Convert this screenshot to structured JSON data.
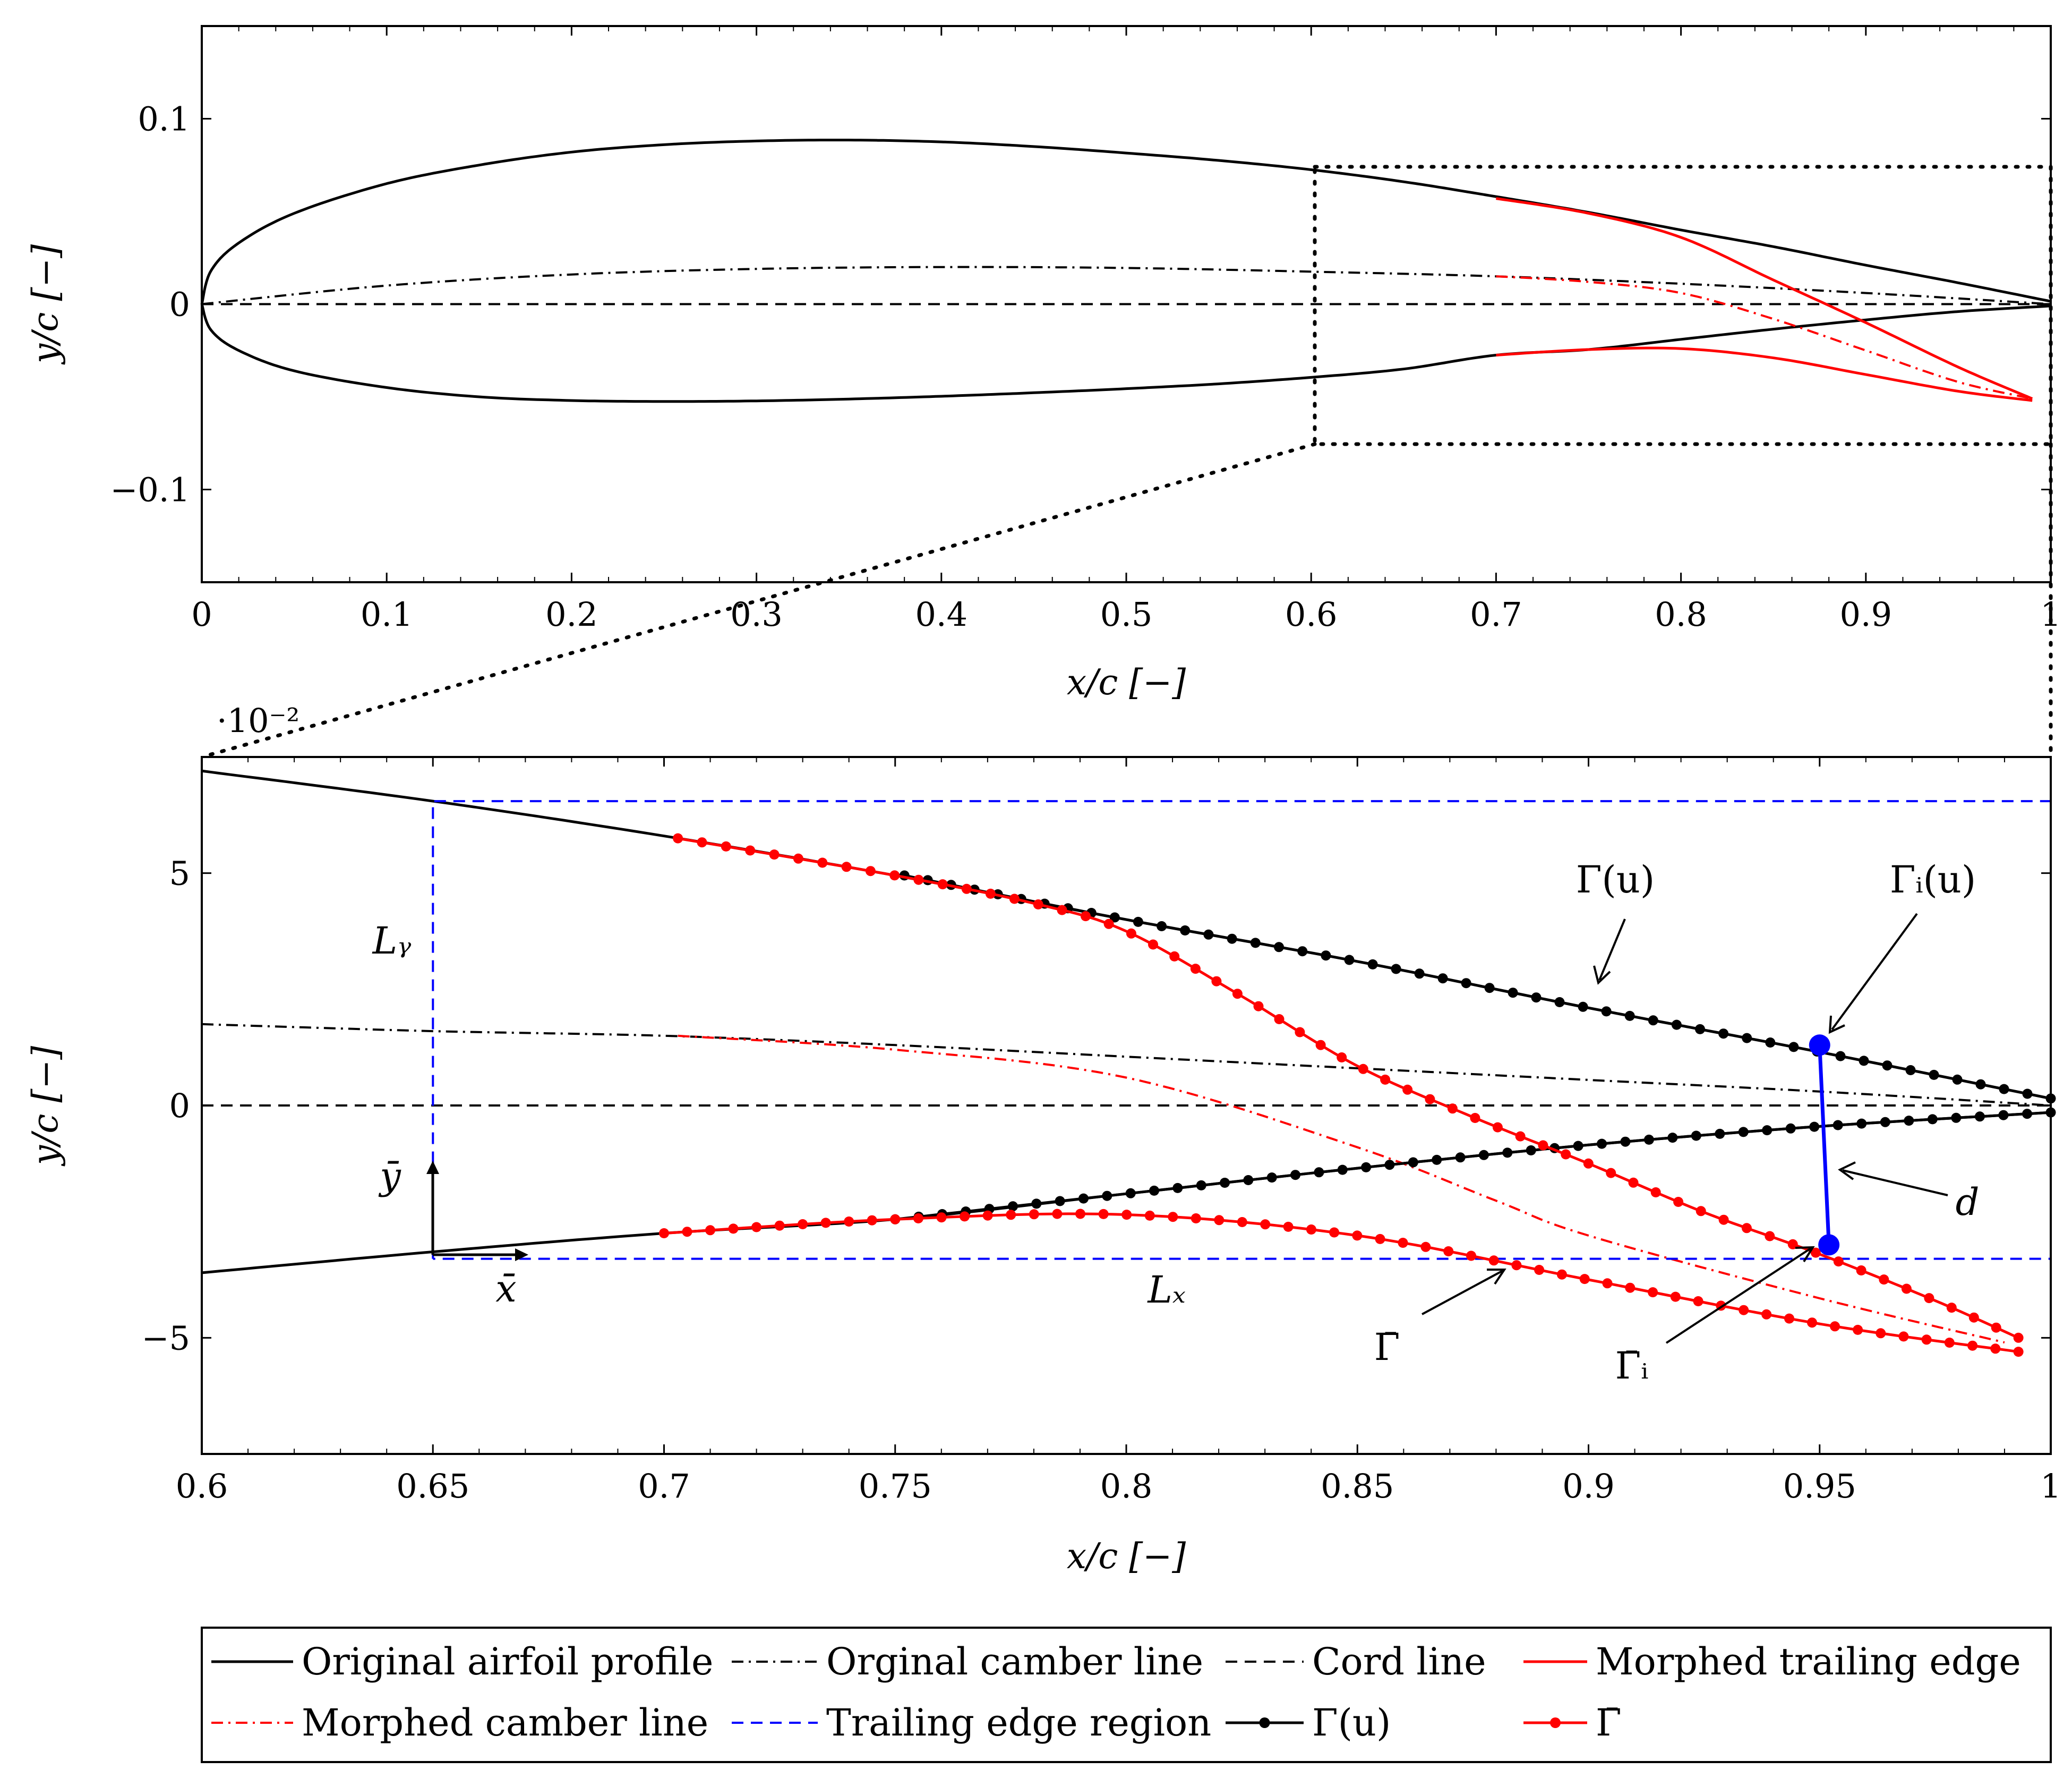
{
  "chart_data": [
    {
      "id": "overview",
      "type": "line",
      "xlabel": "x/c [−]",
      "ylabel": "y/c [−]",
      "xlim": [
        0,
        1
      ],
      "ylim": [
        -0.15,
        0.15
      ],
      "xticks": [
        0,
        0.1,
        0.2,
        0.3,
        0.4,
        0.5,
        0.6,
        0.7,
        0.8,
        0.9,
        1
      ],
      "xtick_labels": [
        "0",
        "0.1",
        "0.2",
        "0.3",
        "0.4",
        "0.5",
        "0.6",
        "0.7",
        "0.8",
        "0.9",
        "1"
      ],
      "yticks": [
        0.1,
        0,
        -0.1
      ],
      "ytick_labels": [
        "0.1",
        "0",
        "−0.1"
      ],
      "series": [
        {
          "name": "Original airfoil profile (upper)",
          "style": "solid",
          "color": "#000000",
          "x": [
            0,
            0.005,
            0.02,
            0.05,
            0.1,
            0.15,
            0.2,
            0.25,
            0.3,
            0.35,
            0.4,
            0.45,
            0.5,
            0.55,
            0.6,
            0.65,
            0.7,
            0.75,
            0.8,
            0.85,
            0.9,
            0.95,
            1.0
          ],
          "y": [
            0,
            0.018,
            0.033,
            0.049,
            0.065,
            0.075,
            0.082,
            0.086,
            0.088,
            0.0885,
            0.0875,
            0.085,
            0.0815,
            0.0775,
            0.0725,
            0.066,
            0.058,
            0.0495,
            0.04,
            0.031,
            0.021,
            0.0115,
            0.0015
          ]
        },
        {
          "name": "Original airfoil profile (lower)",
          "style": "solid",
          "color": "#000000",
          "x": [
            0,
            0.005,
            0.02,
            0.05,
            0.1,
            0.15,
            0.2,
            0.25,
            0.3,
            0.35,
            0.4,
            0.45,
            0.5,
            0.55,
            0.6,
            0.65,
            0.7,
            0.75,
            0.8,
            0.85,
            0.9,
            0.95,
            1.0
          ],
          "y": [
            0,
            -0.014,
            -0.025,
            -0.036,
            -0.045,
            -0.05,
            -0.052,
            -0.0525,
            -0.0522,
            -0.0512,
            -0.0497,
            -0.0478,
            -0.0456,
            -0.043,
            -0.0395,
            -0.035,
            -0.0275,
            -0.0245,
            -0.019,
            -0.0135,
            -0.0085,
            -0.004,
            -0.001
          ]
        },
        {
          "name": "Orginal camber line",
          "style": "dashdot",
          "color": "#000000",
          "x": [
            0,
            0.1,
            0.2,
            0.3,
            0.4,
            0.5,
            0.6,
            0.7,
            0.8,
            0.9,
            1.0
          ],
          "y": [
            0,
            0.01,
            0.016,
            0.019,
            0.02,
            0.0195,
            0.0175,
            0.015,
            0.011,
            0.006,
            0
          ]
        },
        {
          "name": "Cord line",
          "style": "dashed",
          "color": "#000000",
          "x": [
            0,
            1
          ],
          "y": [
            0,
            0
          ]
        },
        {
          "name": "Morphed trailing edge (upper)",
          "style": "solid",
          "color": "#ff0000",
          "x": [
            0.7,
            0.75,
            0.8,
            0.85,
            0.9,
            0.95,
            0.99
          ],
          "y": [
            0.057,
            0.049,
            0.036,
            0.013,
            -0.01,
            -0.034,
            -0.051
          ]
        },
        {
          "name": "Morphed trailing edge (lower)",
          "style": "solid",
          "color": "#ff0000",
          "x": [
            0.7,
            0.75,
            0.8,
            0.85,
            0.9,
            0.95,
            0.99
          ],
          "y": [
            -0.0275,
            -0.0245,
            -0.024,
            -0.029,
            -0.038,
            -0.047,
            -0.052
          ]
        },
        {
          "name": "Morphed camber line",
          "style": "dashdot",
          "color": "#ff0000",
          "x": [
            0.7,
            0.75,
            0.8,
            0.85,
            0.9,
            0.95,
            0.99
          ],
          "y": [
            0.015,
            0.012,
            0.006,
            -0.008,
            -0.025,
            -0.042,
            -0.051
          ]
        }
      ]
    },
    {
      "id": "zoom",
      "type": "line",
      "xlabel": "x/c [−]",
      "ylabel": "y/c [−]",
      "multiplier": "·10⁻²",
      "xlim": [
        0.6,
        1
      ],
      "ylim": [
        -7.5,
        7.5
      ],
      "xticks": [
        0.6,
        0.65,
        0.7,
        0.75,
        0.8,
        0.85,
        0.9,
        0.95,
        1
      ],
      "xtick_labels": [
        "0.6",
        "0.65",
        "0.7",
        "0.75",
        "0.8",
        "0.85",
        "0.9",
        "0.95",
        "1"
      ],
      "yticks": [
        5,
        0,
        -5
      ],
      "ytick_labels": [
        "5",
        "0",
        "−5"
      ],
      "series": [
        {
          "name": "Original airfoil profile (upper)",
          "style": "solid",
          "color": "#000000",
          "x": [
            0.6,
            0.65,
            0.7,
            0.75,
            0.8,
            0.85,
            0.9,
            0.95,
            1.0
          ],
          "y": [
            7.2,
            6.55,
            5.8,
            4.95,
            4.0,
            3.1,
            2.1,
            1.15,
            0.15
          ]
        },
        {
          "name": "Original airfoil profile (lower)",
          "style": "solid",
          "color": "#000000",
          "x": [
            0.6,
            0.65,
            0.7,
            0.75,
            0.8,
            0.85,
            0.9,
            0.95,
            1.0
          ],
          "y": [
            -3.6,
            -3.15,
            -2.75,
            -2.45,
            -1.9,
            -1.35,
            -0.85,
            -0.45,
            -0.15
          ]
        },
        {
          "name": "Orginal camber line",
          "style": "dashdot",
          "color": "#000000",
          "x": [
            0.6,
            0.65,
            0.7,
            0.75,
            0.8,
            0.85,
            0.9,
            0.95,
            1.0
          ],
          "y": [
            1.75,
            1.6,
            1.5,
            1.3,
            1.05,
            0.8,
            0.55,
            0.3,
            0.0
          ]
        },
        {
          "name": "Cord line",
          "style": "dashed",
          "color": "#000000",
          "x": [
            0.6,
            1.0
          ],
          "y": [
            0,
            0
          ]
        },
        {
          "name": "Morphed camber line",
          "style": "dashdot",
          "color": "#ff0000",
          "x": [
            0.703,
            0.75,
            0.8,
            0.85,
            0.88,
            0.9,
            0.95,
            0.99
          ],
          "y": [
            1.5,
            1.2,
            0.6,
            -0.9,
            -2.05,
            -2.8,
            -4.15,
            -5.1
          ]
        },
        {
          "name": "Trailing edge region",
          "style": "dashed",
          "color": "#0000ff",
          "x": [
            0.65,
            0.65,
            1.0,
            1.0,
            0.65
          ],
          "y": [
            -3.3,
            6.55,
            6.55,
            -3.3,
            -3.3
          ]
        },
        {
          "name": "Γ(u)",
          "style": "solid-markers",
          "color": "#000000",
          "x": [
            0.752,
            0.8,
            0.85,
            0.9,
            0.95,
            1.0
          ],
          "y": [
            4.95,
            4.0,
            3.1,
            2.1,
            1.15,
            0.15
          ],
          "n_markers": 50
        },
        {
          "name": "Γ(u) lower",
          "style": "solid-markers",
          "color": "#000000",
          "x": [
            0.75,
            0.8,
            0.85,
            0.9,
            0.95,
            1.0
          ],
          "y": [
            -2.45,
            -1.9,
            -1.35,
            -0.85,
            -0.45,
            -0.15
          ],
          "n_markers": 50
        },
        {
          "name": "Γ̄",
          "style": "solid-markers",
          "color": "#ff0000",
          "x": [
            0.703,
            0.75,
            0.78,
            0.8,
            0.825,
            0.85,
            0.875,
            0.9,
            0.925,
            0.95,
            0.975,
            0.993
          ],
          "y": [
            5.75,
            4.95,
            4.35,
            3.75,
            2.35,
            0.85,
            -0.25,
            -1.25,
            -2.3,
            -3.2,
            -4.2,
            -5.0
          ],
          "n_markers": 60
        },
        {
          "name": "Γ̄ lower",
          "style": "solid-markers",
          "color": "#ff0000",
          "x": [
            0.7,
            0.75,
            0.8,
            0.85,
            0.9,
            0.95,
            0.993
          ],
          "y": [
            -2.75,
            -2.45,
            -2.35,
            -2.8,
            -3.75,
            -4.7,
            -5.3
          ],
          "n_markers": 60
        },
        {
          "name": "d",
          "style": "segment",
          "color": "#0000ff",
          "x": [
            0.95,
            0.952
          ],
          "y": [
            1.3,
            -3.0
          ]
        }
      ],
      "annotations": [
        {
          "name": "gamma-u",
          "text": "Γ(u)"
        },
        {
          "name": "gamma-i-u",
          "text": "Γᵢ(u)"
        },
        {
          "name": "d",
          "text": "d"
        },
        {
          "name": "gamma-bar",
          "text": "Γ̄"
        },
        {
          "name": "gamma-bar-i",
          "text": "Γ̄ᵢ"
        },
        {
          "name": "ly",
          "text": "Lᵧ"
        },
        {
          "name": "lx",
          "text": "Lₓ"
        },
        {
          "name": "xbar",
          "text": "x̄"
        },
        {
          "name": "ybar",
          "text": "ȳ"
        }
      ]
    }
  ],
  "legend": {
    "location": "bottom",
    "entries": [
      {
        "label": "Original airfoil profile",
        "style": "solid",
        "color": "#000000"
      },
      {
        "label": "Orginal camber line",
        "style": "dashdot",
        "color": "#000000"
      },
      {
        "label": "Cord line",
        "style": "dashed",
        "color": "#000000"
      },
      {
        "label": "Morphed trailing edge",
        "style": "solid",
        "color": "#ff0000"
      },
      {
        "label": "Morphed camber line",
        "style": "dashdot",
        "color": "#ff0000"
      },
      {
        "label": "Trailing edge region",
        "style": "dashed",
        "color": "#0000ff"
      },
      {
        "label": "Γ(u)",
        "style": "solid-markers",
        "color": "#000000"
      },
      {
        "label": "Γ̄",
        "style": "solid-markers",
        "color": "#ff0000"
      }
    ]
  }
}
